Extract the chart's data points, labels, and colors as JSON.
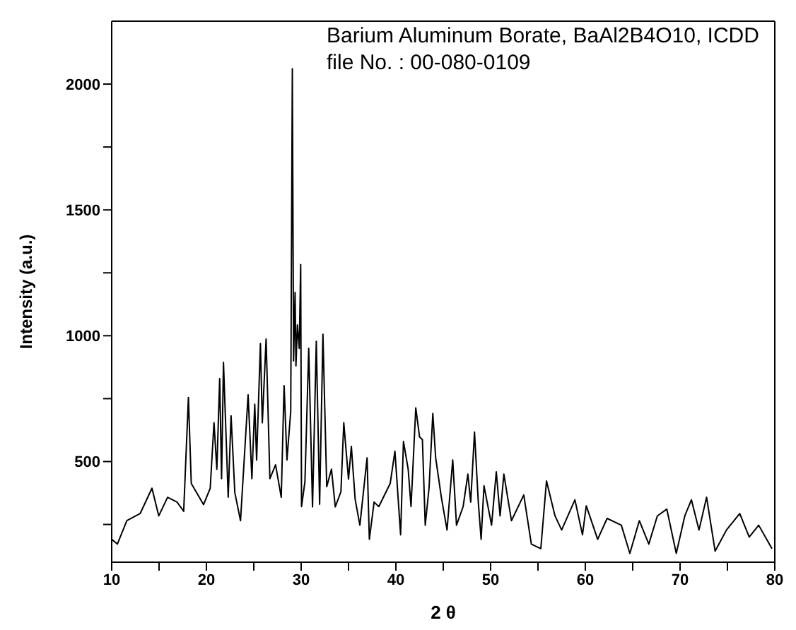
{
  "chart_data": {
    "type": "line",
    "xlabel": "2 θ",
    "ylabel": "Intensity (a.u.)",
    "annotations": [
      "Barium Aluminum Borate, BaAl2B4O10, ICDD file No. : 00-080-0109"
    ],
    "xlim": [
      10,
      80
    ],
    "ylim": [
      100,
      2250
    ],
    "xticks": [
      10,
      {
        "value": 15,
        "label": null
      },
      20,
      {
        "value": 25,
        "label": null
      },
      30,
      {
        "value": 35,
        "label": null
      },
      40,
      {
        "value": 45,
        "label": null
      },
      50,
      {
        "value": 55,
        "label": null
      },
      60,
      {
        "value": 65,
        "label": null
      },
      70,
      {
        "value": 75,
        "label": null
      },
      80
    ],
    "yticks": [
      {
        "value": 250,
        "label": null
      },
      500,
      {
        "value": 750,
        "label": null
      },
      1000,
      {
        "value": 1250,
        "label": null
      },
      1500,
      {
        "value": 1750,
        "label": null
      },
      2000
    ],
    "grid": false,
    "legend": false,
    "marker": "none",
    "line_style": "solid",
    "series": [
      {
        "color": "#000000",
        "x": [
          10.0,
          10.6,
          11.6,
          13.0,
          14.25,
          14.97,
          15.9,
          16.9,
          17.6,
          18.1,
          18.4,
          19.7,
          20.4,
          20.8,
          21.1,
          21.4,
          21.6,
          21.8,
          22.3,
          22.6,
          23.0,
          23.6,
          24.4,
          24.8,
          25.1,
          25.3,
          25.7,
          25.9,
          26.3,
          26.7,
          27.3,
          27.9,
          28.2,
          28.5,
          28.9,
          29.07,
          29.2,
          29.36,
          29.45,
          29.6,
          29.8,
          29.95,
          30.04,
          30.4,
          30.8,
          31.2,
          31.6,
          31.95,
          32.3,
          32.7,
          33.2,
          33.6,
          34.2,
          34.5,
          35.0,
          35.3,
          35.7,
          36.2,
          36.96,
          37.2,
          37.7,
          38.2,
          39.4,
          39.9,
          40.5,
          40.8,
          41.3,
          41.6,
          42.1,
          42.5,
          42.8,
          43.1,
          43.5,
          43.9,
          44.2,
          44.8,
          45.4,
          46.0,
          46.4,
          47.1,
          47.6,
          47.9,
          48.3,
          48.7,
          49.0,
          49.3,
          50.1,
          50.6,
          51.0,
          51.4,
          52.2,
          53.5,
          54.3,
          55.3,
          55.9,
          56.8,
          57.5,
          58.9,
          59.7,
          60.1,
          61.3,
          62.3,
          63.8,
          64.7,
          65.7,
          66.7,
          67.6,
          68.6,
          69.6,
          70.5,
          71.2,
          72.0,
          72.8,
          73.7,
          74.9,
          76.3,
          77.3,
          78.3,
          79.7
        ],
        "values": [
          191,
          172,
          265,
          293,
          394,
          284,
          358,
          339,
          302,
          755,
          413,
          329,
          394,
          654,
          469,
          830,
          432,
          894,
          358,
          682,
          376,
          265,
          765,
          432,
          728,
          506,
          969,
          654,
          987,
          432,
          487,
          358,
          802,
          506,
          700,
          2061,
          900,
          1172,
          880,
          1043,
          950,
          1283,
          321,
          420,
          950,
          320,
          978,
          330,
          1006,
          400,
          470,
          320,
          380,
          654,
          430,
          560,
          350,
          247,
          515,
          191,
          339,
          321,
          413,
          541,
          209,
          580,
          469,
          321,
          713,
          598,
          587,
          247,
          394,
          691,
          515,
          358,
          228,
          506,
          247,
          321,
          450,
          339,
          617,
          339,
          191,
          404,
          247,
          459,
          284,
          450,
          265,
          367,
          172,
          154,
          423,
          284,
          228,
          348,
          209,
          324,
          191,
          274,
          247,
          135,
          265,
          172,
          284,
          311,
          135,
          284,
          348,
          228,
          358,
          144,
          228,
          293,
          200,
          247,
          154
        ]
      }
    ]
  }
}
